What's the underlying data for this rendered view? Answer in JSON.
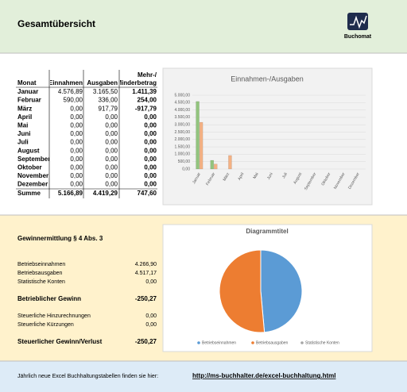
{
  "header": {
    "title": "Gesamtübersicht",
    "logo": "Buchomat"
  },
  "table": {
    "columns": [
      "Monat",
      "Einnahmen",
      "Ausgaben",
      [
        "Mehr-/",
        "Minderbetrag"
      ]
    ],
    "rows": [
      [
        "Januar",
        "4.576,89",
        "3.165,50",
        "1.411,39"
      ],
      [
        "Februar",
        "590,00",
        "336,00",
        "254,00"
      ],
      [
        "März",
        "0,00",
        "917,79",
        "-917,79"
      ],
      [
        "April",
        "0,00",
        "0,00",
        "0,00"
      ],
      [
        "Mai",
        "0,00",
        "0,00",
        "0,00"
      ],
      [
        "Juni",
        "0,00",
        "0,00",
        "0,00"
      ],
      [
        "Juli",
        "0,00",
        "0,00",
        "0,00"
      ],
      [
        "August",
        "0,00",
        "0,00",
        "0,00"
      ],
      [
        "September",
        "0,00",
        "0,00",
        "0,00"
      ],
      [
        "Oktober",
        "0,00",
        "0,00",
        "0,00"
      ],
      [
        "November",
        "0,00",
        "0,00",
        "0,00"
      ],
      [
        "Dezember",
        "0,00",
        "0,00",
        "0,00"
      ]
    ],
    "total": [
      "Summe",
      "5.166,89",
      "4.419,29",
      "747,60"
    ]
  },
  "bar_chart": {
    "type": "bar",
    "title": "Einnahmen-/Ausgaben",
    "categories": [
      "Januar",
      "Februar",
      "März",
      "April",
      "Mai",
      "Juni",
      "Juli",
      "August",
      "September",
      "Oktober",
      "November",
      "Dezember"
    ],
    "series": [
      {
        "name": "Einnahmen",
        "color": "#92c47d",
        "values": [
          4576.89,
          590,
          0,
          0,
          0,
          0,
          0,
          0,
          0,
          0,
          0,
          0
        ]
      },
      {
        "name": "Ausgaben",
        "color": "#f4b183",
        "values": [
          3165.5,
          336,
          917.79,
          0,
          0,
          0,
          0,
          0,
          0,
          0,
          0,
          0
        ]
      }
    ],
    "ylim": [
      0,
      5000
    ],
    "yticks": [
      {
        "value": 0,
        "label": "0,00"
      },
      {
        "value": 500,
        "label": "500,00"
      },
      {
        "value": 1000,
        "label": "1.000,00"
      },
      {
        "value": 1500,
        "label": "1.500,00"
      },
      {
        "value": 2000,
        "label": "2.000,00"
      },
      {
        "value": 2500,
        "label": "2.500,00"
      },
      {
        "value": 3000,
        "label": "3.000,00"
      },
      {
        "value": 3500,
        "label": "3.500,00"
      },
      {
        "value": 4000,
        "label": "4.000,00"
      },
      {
        "value": 4500,
        "label": "4.500,00"
      },
      {
        "value": 5000,
        "label": "5.000,00"
      }
    ],
    "grid": true
  },
  "profit": {
    "title": "Gewinnermittlung § 4 Abs. 3",
    "rows": [
      {
        "label": "Betriebseinnahmen",
        "value": "4.266,90",
        "bold": false
      },
      {
        "label": "Betriebsausgaben",
        "value": "4.517,17",
        "bold": false
      },
      {
        "label": "Statistische Konten",
        "value": "0,00",
        "bold": false
      },
      {
        "label": "Betrieblicher Gewinn",
        "value": "-250,27",
        "bold": true
      },
      {
        "label": "Steuerliche Hinzurechnungen",
        "value": "0,00",
        "bold": false
      },
      {
        "label": "Steuerliche Kürzungen",
        "value": "0,00",
        "bold": false
      },
      {
        "label": "Steuerlicher Gewinn/Verlust",
        "value": "-250,27",
        "bold": true
      }
    ]
  },
  "pie_chart": {
    "type": "pie",
    "title": "Diagrammtitel",
    "categories": [
      "Betriebseinnahmen",
      "Betriebsausgaben",
      "Statistische Konten"
    ],
    "values": [
      4266.9,
      4517.17,
      0
    ],
    "colors": [
      "#5b9bd5",
      "#ed7d31",
      "#a5a5a5"
    ]
  },
  "footer": {
    "text": "Jährlich neue Excel Buchhaltungstabellen finden sie hier:",
    "link": "http://ms-buchhalter.de/excel-buchhaltung.html"
  }
}
